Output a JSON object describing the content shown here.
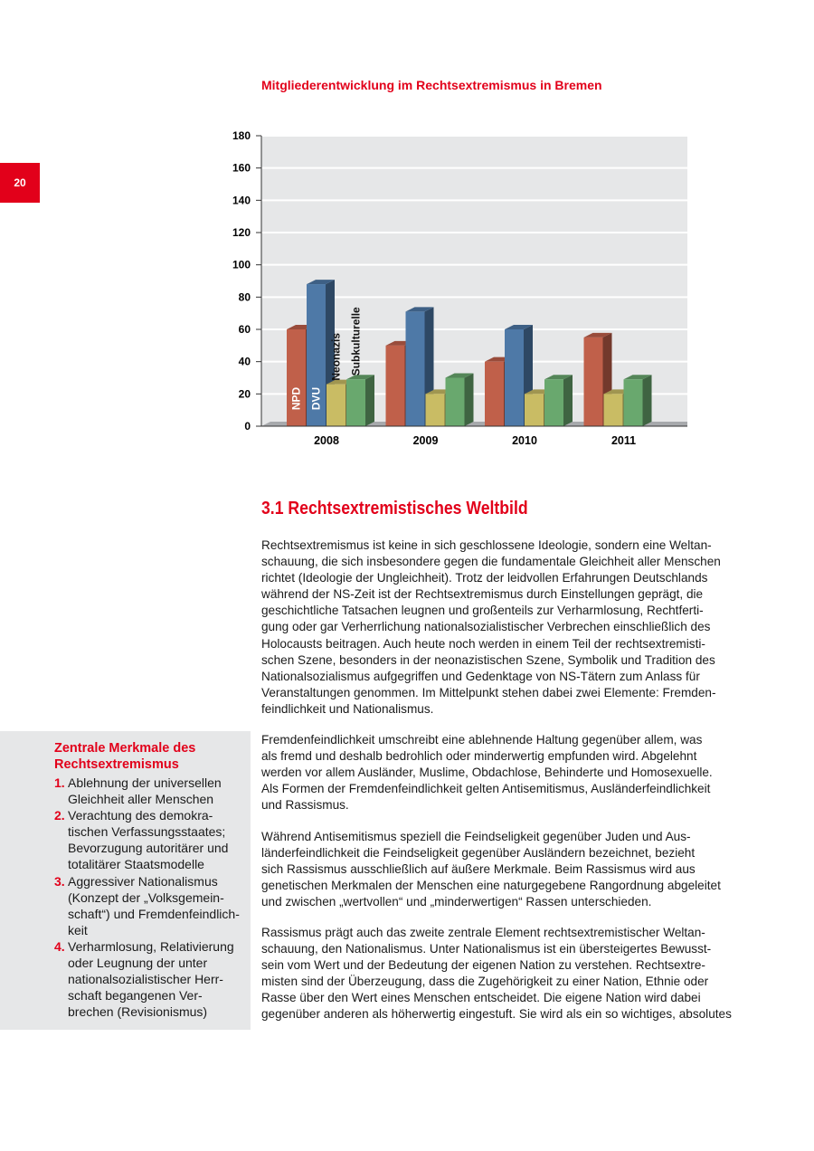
{
  "page_number": "20",
  "chart_data": {
    "type": "bar",
    "title": "Mitgliederentwicklung im Rechtsextremismus in Bremen",
    "categories": [
      "2008",
      "2009",
      "2010",
      "2011"
    ],
    "series": [
      {
        "name": "NPD",
        "values": [
          60,
          50,
          40,
          55
        ],
        "color": "#c0604a"
      },
      {
        "name": "DVU",
        "values": [
          88,
          71,
          60,
          null
        ],
        "color": "#4e79a7"
      },
      {
        "name": "Neonazis",
        "values": [
          26,
          20,
          20,
          20
        ],
        "color": "#c9bc64"
      },
      {
        "name": "Subkulturelle",
        "values": [
          29,
          30,
          29,
          29
        ],
        "color": "#69a86e"
      }
    ],
    "ylim": [
      0,
      180
    ],
    "yticks": [
      "0",
      "20",
      "40",
      "60",
      "80",
      "100",
      "120",
      "140",
      "160",
      "180"
    ],
    "grid": true,
    "legend": "series labels rotated inside 2008 group"
  },
  "section_heading": "3.1 Rechtsextremistisches Weltbild",
  "paragraphs": [
    [
      "Rechtsextremismus ist keine in sich geschlossene Ideologie, sondern eine Weltan-",
      "schauung, die sich insbesondere gegen die fundamentale Gleichheit aller Menschen",
      "richtet (Ideologie der Ungleichheit). Trotz der leidvollen Erfahrungen Deutschlands",
      "während der NS-Zeit ist der Rechtsextremismus durch Einstellungen geprägt, die",
      "geschichtliche Tatsachen leugnen und großenteils zur Verharmlosung, Rechtferti-",
      "gung oder gar Verherrlichung nationalsozialistischer Verbrechen einschließlich des",
      "Holocausts beitragen. Auch heute noch werden in einem Teil der rechtsextremisti-",
      "schen Szene, besonders in der neonazistischen Szene, Symbolik und Tradition des",
      "Nationalsozialismus aufgegriffen und Gedenktage von NS-Tätern zum Anlass für",
      "Veranstaltungen genommen. Im Mittelpunkt stehen dabei zwei Elemente: Fremden-",
      "feindlichkeit und Nationalismus."
    ],
    [
      "Fremdenfeindlichkeit umschreibt eine ablehnende Haltung gegenüber allem, was",
      "als fremd und deshalb bedrohlich oder minderwertig empfunden wird. Abgelehnt",
      "werden vor allem Ausländer, Muslime, Obdachlose, Behinderte und Homosexuelle.",
      "Als Formen der Fremdenfeindlichkeit gelten Antisemitismus, Ausländerfeindlichkeit",
      "und Rassismus."
    ],
    [
      "Während Antisemitismus speziell die Feindseligkeit gegenüber Juden und Aus-",
      "länderfeindlichkeit die Feindseligkeit gegenüber Ausländern bezeichnet, bezieht",
      "sich Rassismus ausschließlich auf äußere Merkmale. Beim Rassismus wird aus",
      "genetischen Merkmalen der Menschen eine naturgegebene Rangordnung abgeleitet",
      "und zwischen „wertvollen“ und „minderwertigen“ Rassen unterschieden."
    ],
    [
      "Rassismus prägt auch das zweite zentrale Element rechtsextremistischer Weltan-",
      "schauung, den Nationalismus. Unter Nationalismus ist ein übersteigertes Bewusst-",
      "sein vom Wert und der Bedeutung der eigenen Nation zu verstehen. Rechtsextre-",
      "misten sind der Überzeugung, dass die Zugehörigkeit zu einer Nation, Ethnie oder",
      "Rasse über den Wert eines Menschen entscheidet. Die eigene Nation wird dabei",
      "gegenüber anderen als höherwertig eingestuft. Sie wird als ein so wichtiges, absolutes"
    ]
  ],
  "sidebar": {
    "title_lines": [
      "Zentrale Merkmale des",
      "Rechtsextremismus"
    ],
    "items": [
      {
        "num": "1.",
        "lines": [
          "Ablehnung der universellen",
          "Gleichheit aller Menschen"
        ]
      },
      {
        "num": "2.",
        "lines": [
          "Verachtung des demokra-",
          "tischen Verfassungsstaates;",
          "Bevorzugung autoritärer und",
          "totalitärer Staatsmodelle"
        ]
      },
      {
        "num": "3.",
        "lines": [
          "Aggressiver Nationalismus",
          "(Konzept der „Volksgemein-",
          "schaft“) und Fremdenfeindlich-",
          "keit"
        ]
      },
      {
        "num": "4.",
        "lines": [
          "Verharmlosung, Relativierung",
          "oder Leugnung der unter",
          "nationalsozialistischer Herr-",
          "schaft begangenen Ver-",
          "brechen (Revisionismus)"
        ]
      }
    ]
  }
}
